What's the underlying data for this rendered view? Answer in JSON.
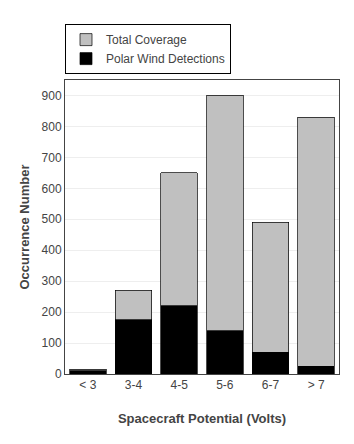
{
  "chart_data": {
    "type": "bar",
    "stacked": true,
    "categories": [
      "< 3",
      "3-4",
      "4-5",
      "5-6",
      "6-7",
      "> 7"
    ],
    "series": [
      {
        "name": "Polar Wind Detections",
        "color": "#000000",
        "values": [
          10,
          175,
          220,
          140,
          70,
          25
        ]
      },
      {
        "name": "Total Coverage",
        "color": "#c0c0c0",
        "values": [
          5,
          95,
          430,
          760,
          420,
          805
        ]
      }
    ],
    "xlabel": "Spacecraft Potential (Volts)",
    "ylabel": "Occurrence Number",
    "ylim": [
      0,
      950
    ],
    "yticks": [
      0,
      100,
      200,
      300,
      400,
      500,
      600,
      700,
      800,
      900
    ],
    "grid": true,
    "legend": "top left"
  }
}
